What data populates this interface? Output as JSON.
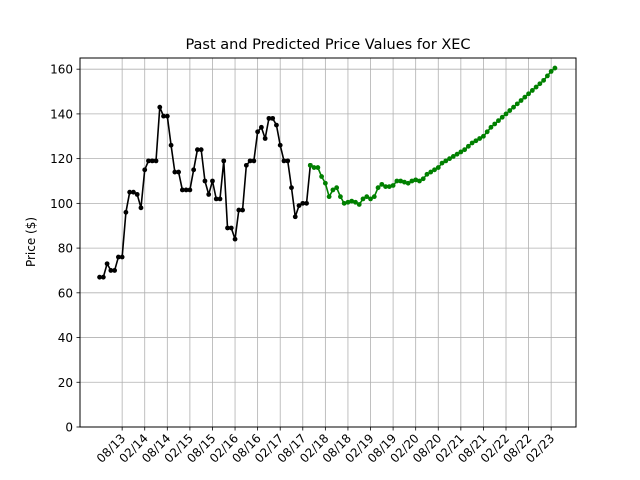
{
  "chart_data": {
    "type": "line",
    "title": "Past and Predicted Price Values for XEC",
    "xlabel": "",
    "ylabel": "Price ($)",
    "ylim": [
      0,
      165
    ],
    "y_ticks": [
      0,
      20,
      40,
      60,
      80,
      100,
      120,
      140,
      160
    ],
    "x_tick_labels": [
      "08/13",
      "02/14",
      "08/14",
      "02/15",
      "08/15",
      "02/16",
      "08/16",
      "02/17",
      "08/17",
      "02/18",
      "08/18",
      "02/19",
      "08/19",
      "02/20",
      "08/20",
      "02/21",
      "08/21",
      "02/22",
      "08/22",
      "02/23"
    ],
    "x_axis": {
      "unit": "months",
      "tick_spacing": 6,
      "tick_start": 6,
      "xlim": [
        -5.2,
        126.6
      ]
    },
    "grid": true,
    "series": [
      {
        "name": "",
        "color": "#000000",
        "x": [
          0,
          1,
          2,
          3,
          4,
          5,
          6,
          7,
          8,
          9,
          10,
          11,
          12,
          13,
          14,
          15,
          16,
          17,
          18,
          19,
          20,
          21,
          22,
          23,
          24,
          25,
          26,
          27,
          28,
          29,
          30,
          31,
          32,
          33,
          34,
          35,
          36,
          37,
          38,
          39,
          40,
          41,
          42,
          43,
          44,
          45,
          46,
          47,
          48,
          49,
          50,
          51,
          52,
          53,
          54,
          55,
          56
        ],
        "values": [
          67,
          67,
          73,
          70,
          70,
          76,
          76,
          96,
          105,
          105,
          104,
          98,
          115,
          119,
          119,
          119,
          143,
          139,
          139,
          126,
          114,
          114,
          106,
          106,
          106,
          115,
          124,
          124,
          110,
          104,
          110,
          102,
          102,
          119,
          89,
          89,
          84,
          97,
          97,
          117,
          119,
          119,
          132,
          134,
          129,
          138,
          138,
          135,
          126,
          119,
          119,
          107,
          94,
          99,
          100,
          100,
          117
        ]
      },
      {
        "name": "",
        "color": "#008000",
        "x": [
          56,
          57,
          58,
          59,
          60,
          61,
          62,
          63,
          64,
          65,
          66,
          67,
          68,
          69,
          70,
          71,
          72,
          73,
          74,
          75,
          76,
          77,
          78,
          79,
          80,
          81,
          82,
          83,
          84,
          85,
          86,
          87,
          88,
          89,
          90,
          91,
          92,
          93,
          94,
          95,
          96,
          97,
          98,
          99,
          100,
          101,
          102,
          103,
          104,
          105,
          106,
          107,
          108,
          109,
          110,
          111,
          112,
          113,
          114,
          115,
          116,
          117,
          118,
          119,
          120,
          121
        ],
        "values": [
          117,
          116,
          116,
          112,
          109,
          103,
          106,
          107,
          103,
          100,
          100.5,
          101,
          100.5,
          99.5,
          102,
          103,
          102,
          103,
          107,
          108.5,
          107.5,
          107.5,
          108,
          110,
          110,
          109.5,
          109,
          110,
          110.5,
          110,
          111,
          113,
          114,
          115,
          116,
          118,
          119,
          120,
          121,
          122,
          123,
          124,
          125.5,
          127,
          128,
          129,
          130,
          132,
          134,
          135.5,
          137,
          138.5,
          140,
          141.5,
          143,
          144.5,
          146,
          147.5,
          149,
          150.5,
          152,
          153.5,
          155,
          157,
          159,
          160.5
        ]
      }
    ]
  }
}
